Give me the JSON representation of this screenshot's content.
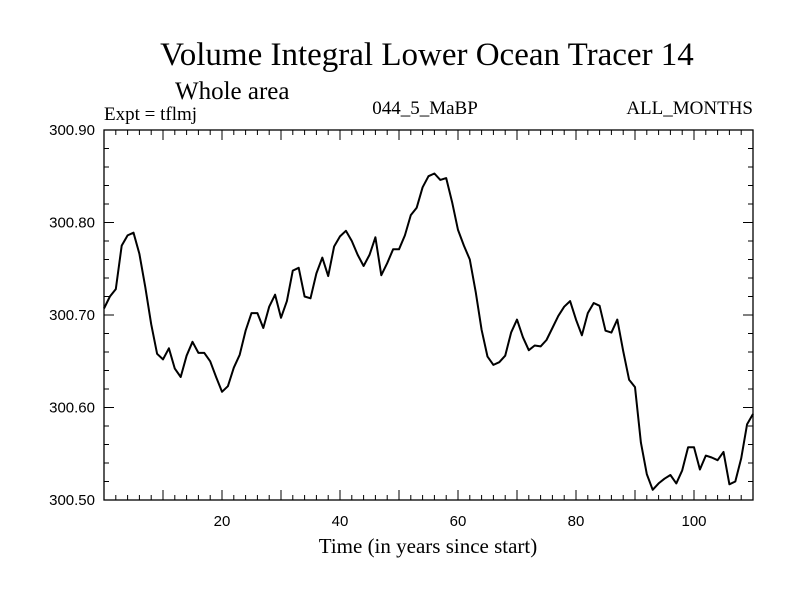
{
  "chart_data": {
    "type": "line",
    "title": "Volume Integral Lower Ocean Tracer 14",
    "subtitle": "Whole area",
    "annotation_left": "Expt = tflmj",
    "annotation_center": "044_5_MaBP",
    "annotation_right": "ALL_MONTHS",
    "xlabel": "Time (in years since start)",
    "ylabel": "",
    "xlim": [
      0,
      110
    ],
    "ylim": [
      300.5,
      300.9
    ],
    "x_ticks": [
      20,
      40,
      60,
      80,
      100
    ],
    "y_ticks": [
      "300.50",
      "300.60",
      "300.70",
      "300.80",
      "300.90"
    ],
    "grid": false,
    "series": [
      {
        "name": "Tracer 14",
        "x": [
          0,
          1,
          2,
          3,
          4,
          5,
          6,
          7,
          8,
          9,
          10,
          11,
          12,
          13,
          14,
          15,
          16,
          17,
          18,
          19,
          20,
          21,
          22,
          23,
          24,
          25,
          26,
          27,
          28,
          29,
          30,
          31,
          32,
          33,
          34,
          35,
          36,
          37,
          38,
          39,
          40,
          41,
          42,
          43,
          44,
          45,
          46,
          47,
          48,
          49,
          50,
          51,
          52,
          53,
          54,
          55,
          56,
          57,
          58,
          59,
          60,
          61,
          62,
          63,
          64,
          65,
          66,
          67,
          68,
          69,
          70,
          71,
          72,
          73,
          74,
          75,
          76,
          77,
          78,
          79,
          80,
          81,
          82,
          83,
          84,
          85,
          86,
          87,
          88,
          89,
          90,
          91,
          92,
          93,
          94,
          95,
          96,
          97,
          98,
          99,
          100,
          101,
          102,
          103,
          104,
          105,
          106,
          107,
          108,
          109,
          110
        ],
        "values": [
          300.707,
          300.72,
          300.728,
          300.775,
          300.786,
          300.789,
          300.766,
          300.73,
          300.69,
          300.658,
          300.652,
          300.664,
          300.642,
          300.633,
          300.656,
          300.671,
          300.659,
          300.659,
          300.65,
          300.633,
          300.617,
          300.623,
          300.643,
          300.657,
          300.683,
          300.702,
          300.702,
          300.686,
          300.709,
          300.722,
          300.697,
          300.715,
          300.748,
          300.751,
          300.72,
          300.718,
          300.745,
          300.762,
          300.742,
          300.774,
          300.785,
          300.791,
          300.78,
          300.765,
          300.753,
          300.765,
          300.784,
          300.743,
          300.756,
          300.771,
          300.771,
          300.786,
          300.808,
          300.816,
          300.838,
          300.85,
          300.853,
          300.846,
          300.848,
          300.822,
          300.792,
          300.775,
          300.76,
          300.725,
          300.684,
          300.655,
          300.646,
          300.649,
          300.656,
          300.681,
          300.695,
          300.676,
          300.662,
          300.667,
          300.666,
          300.673,
          300.686,
          300.699,
          300.709,
          300.715,
          300.695,
          300.678,
          300.702,
          300.713,
          300.71,
          300.683,
          300.681,
          300.695,
          300.661,
          300.63,
          300.622,
          300.562,
          300.528,
          300.511,
          300.518,
          300.523,
          300.527,
          300.518,
          300.532,
          300.557,
          300.557,
          300.533,
          300.548,
          300.546,
          300.543,
          300.552,
          300.517,
          300.52,
          300.545,
          300.582,
          300.593
        ]
      }
    ]
  }
}
